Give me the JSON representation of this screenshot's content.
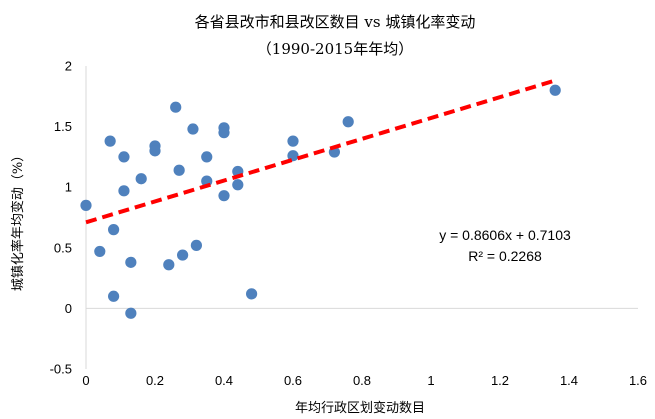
{
  "chart_data": {
    "type": "scatter",
    "title": "各省县改市和县改区数目 vs 城镇化率变动",
    "subtitle": "（1990-2015年年均）",
    "xlabel": "年均行政区划变动数目",
    "ylabel": "城镇化率年均变动（%）",
    "xlim": [
      0,
      1.6
    ],
    "ylim": [
      -0.5,
      2
    ],
    "x_ticks": [
      "0",
      "0.2",
      "0.4",
      "0.6",
      "0.8",
      "1",
      "1.2",
      "1.4",
      "1.6"
    ],
    "y_ticks": [
      "-0.5",
      "0",
      "0.5",
      "1",
      "1.5",
      "2"
    ],
    "grid": false,
    "colors": {
      "points": "#4F81BD",
      "trendline": "#FF0000",
      "axis": "#D9D9D9"
    },
    "points": [
      {
        "x": 0.0,
        "y": 0.85
      },
      {
        "x": 0.04,
        "y": 0.47
      },
      {
        "x": 0.07,
        "y": 1.38
      },
      {
        "x": 0.08,
        "y": 0.65
      },
      {
        "x": 0.08,
        "y": 0.1
      },
      {
        "x": 0.11,
        "y": 1.25
      },
      {
        "x": 0.11,
        "y": 0.97
      },
      {
        "x": 0.13,
        "y": 0.38
      },
      {
        "x": 0.13,
        "y": -0.04
      },
      {
        "x": 0.16,
        "y": 1.07
      },
      {
        "x": 0.2,
        "y": 1.34
      },
      {
        "x": 0.2,
        "y": 1.3
      },
      {
        "x": 0.24,
        "y": 0.36
      },
      {
        "x": 0.26,
        "y": 1.66
      },
      {
        "x": 0.27,
        "y": 1.14
      },
      {
        "x": 0.28,
        "y": 0.44
      },
      {
        "x": 0.31,
        "y": 1.48
      },
      {
        "x": 0.32,
        "y": 0.52
      },
      {
        "x": 0.35,
        "y": 1.25
      },
      {
        "x": 0.35,
        "y": 1.05
      },
      {
        "x": 0.4,
        "y": 1.49
      },
      {
        "x": 0.4,
        "y": 1.45
      },
      {
        "x": 0.4,
        "y": 0.93
      },
      {
        "x": 0.44,
        "y": 1.13
      },
      {
        "x": 0.44,
        "y": 1.02
      },
      {
        "x": 0.48,
        "y": 0.12
      },
      {
        "x": 0.6,
        "y": 1.38
      },
      {
        "x": 0.6,
        "y": 1.26
      },
      {
        "x": 0.72,
        "y": 1.29
      },
      {
        "x": 0.76,
        "y": 1.54
      },
      {
        "x": 1.36,
        "y": 1.8
      }
    ],
    "trendline": {
      "slope": 0.8606,
      "intercept": 0.7103,
      "x_range": [
        0,
        1.36
      ],
      "equation": "y = 0.8606x + 0.7103",
      "r_squared": "R² = 0.2268"
    }
  }
}
